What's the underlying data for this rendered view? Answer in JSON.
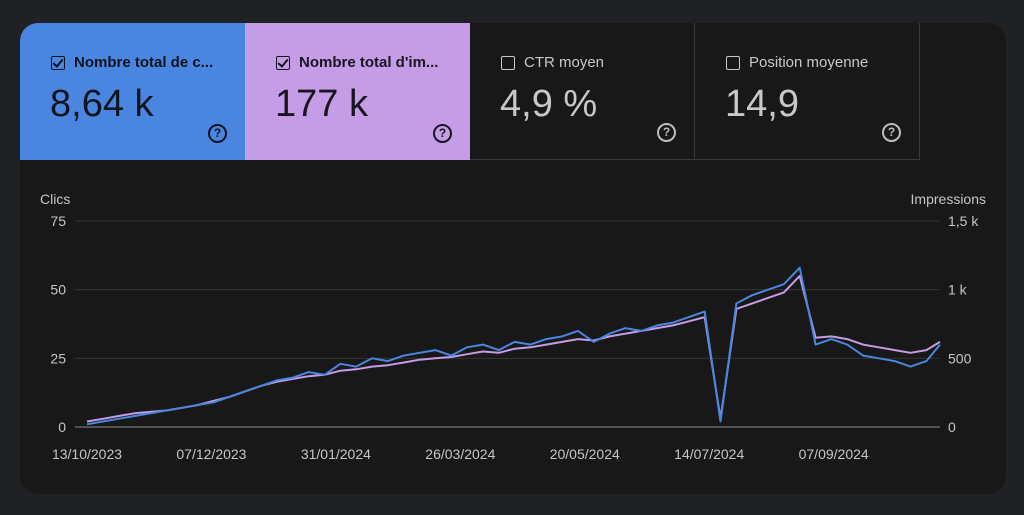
{
  "metrics": [
    {
      "label": "Nombre total de c...",
      "value": "8,64 k",
      "checked": true
    },
    {
      "label": "Nombre total d'im...",
      "value": "177 k",
      "checked": true
    },
    {
      "label": "CTR moyen",
      "value": "4,9 %",
      "checked": false
    },
    {
      "label": "Position moyenne",
      "value": "14,9",
      "checked": false
    }
  ],
  "help_glyph": "?",
  "colors": {
    "clicks": "#4a86e0",
    "impressions": "#c59ce6",
    "background": "#181818"
  },
  "chart_data": {
    "type": "line",
    "y_left": {
      "label": "Clics",
      "range": [
        0,
        75
      ],
      "ticks": [
        "0",
        "25",
        "50",
        "75"
      ]
    },
    "y_right": {
      "label": "Impressions",
      "range": [
        0,
        1500
      ],
      "ticks": [
        "0",
        "500",
        "1 k",
        "1,5 k"
      ]
    },
    "x_range": [
      "2023-10-13",
      "2024-10-24"
    ],
    "x_ticks": [
      "13/10/2023",
      "07/12/2023",
      "31/01/2024",
      "26/03/2024",
      "20/05/2024",
      "14/07/2024",
      "07/09/2024"
    ],
    "grid": true,
    "series": [
      {
        "name": "Clics",
        "axis": "left",
        "color": "#4a86e0",
        "values": [
          [
            "2023-10-13",
            1
          ],
          [
            "2023-10-20",
            2
          ],
          [
            "2023-10-27",
            3
          ],
          [
            "2023-11-03",
            4
          ],
          [
            "2023-11-10",
            5
          ],
          [
            "2023-11-17",
            6
          ],
          [
            "2023-11-24",
            7
          ],
          [
            "2023-12-01",
            8
          ],
          [
            "2023-12-08",
            9
          ],
          [
            "2023-12-15",
            11
          ],
          [
            "2023-12-22",
            13
          ],
          [
            "2023-12-29",
            15
          ],
          [
            "2024-01-05",
            17
          ],
          [
            "2024-01-12",
            18
          ],
          [
            "2024-01-19",
            20
          ],
          [
            "2024-01-26",
            19
          ],
          [
            "2024-02-02",
            23
          ],
          [
            "2024-02-09",
            22
          ],
          [
            "2024-02-16",
            25
          ],
          [
            "2024-02-23",
            24
          ],
          [
            "2024-03-01",
            26
          ],
          [
            "2024-03-08",
            27
          ],
          [
            "2024-03-15",
            28
          ],
          [
            "2024-03-22",
            26
          ],
          [
            "2024-03-29",
            29
          ],
          [
            "2024-04-05",
            30
          ],
          [
            "2024-04-12",
            28
          ],
          [
            "2024-04-19",
            31
          ],
          [
            "2024-04-26",
            30
          ],
          [
            "2024-05-03",
            32
          ],
          [
            "2024-05-10",
            33
          ],
          [
            "2024-05-17",
            35
          ],
          [
            "2024-05-24",
            31
          ],
          [
            "2024-05-31",
            34
          ],
          [
            "2024-06-07",
            36
          ],
          [
            "2024-06-14",
            35
          ],
          [
            "2024-06-21",
            37
          ],
          [
            "2024-06-28",
            38
          ],
          [
            "2024-07-05",
            40
          ],
          [
            "2024-07-12",
            42
          ],
          [
            "2024-07-19",
            2
          ],
          [
            "2024-07-26",
            45
          ],
          [
            "2024-08-02",
            48
          ],
          [
            "2024-08-09",
            50
          ],
          [
            "2024-08-16",
            52
          ],
          [
            "2024-08-23",
            58
          ],
          [
            "2024-08-30",
            30
          ],
          [
            "2024-09-06",
            32
          ],
          [
            "2024-09-13",
            30
          ],
          [
            "2024-09-20",
            26
          ],
          [
            "2024-09-27",
            25
          ],
          [
            "2024-10-04",
            24
          ],
          [
            "2024-10-11",
            22
          ],
          [
            "2024-10-18",
            24
          ],
          [
            "2024-10-24",
            30
          ]
        ]
      },
      {
        "name": "Impressions",
        "axis": "right",
        "color": "#c59ce6",
        "values": [
          [
            "2023-10-13",
            40
          ],
          [
            "2023-10-20",
            60
          ],
          [
            "2023-10-27",
            80
          ],
          [
            "2023-11-03",
            100
          ],
          [
            "2023-11-10",
            110
          ],
          [
            "2023-11-17",
            120
          ],
          [
            "2023-11-24",
            140
          ],
          [
            "2023-12-01",
            160
          ],
          [
            "2023-12-08",
            190
          ],
          [
            "2023-12-15",
            220
          ],
          [
            "2023-12-22",
            260
          ],
          [
            "2023-12-29",
            300
          ],
          [
            "2024-01-05",
            330
          ],
          [
            "2024-01-12",
            350
          ],
          [
            "2024-01-19",
            370
          ],
          [
            "2024-01-26",
            380
          ],
          [
            "2024-02-02",
            410
          ],
          [
            "2024-02-09",
            420
          ],
          [
            "2024-02-16",
            440
          ],
          [
            "2024-02-23",
            450
          ],
          [
            "2024-03-01",
            470
          ],
          [
            "2024-03-08",
            490
          ],
          [
            "2024-03-15",
            500
          ],
          [
            "2024-03-22",
            510
          ],
          [
            "2024-03-29",
            530
          ],
          [
            "2024-04-05",
            550
          ],
          [
            "2024-04-12",
            540
          ],
          [
            "2024-04-19",
            570
          ],
          [
            "2024-04-26",
            580
          ],
          [
            "2024-05-03",
            600
          ],
          [
            "2024-05-10",
            620
          ],
          [
            "2024-05-17",
            640
          ],
          [
            "2024-05-24",
            630
          ],
          [
            "2024-05-31",
            660
          ],
          [
            "2024-06-07",
            680
          ],
          [
            "2024-06-14",
            700
          ],
          [
            "2024-06-21",
            720
          ],
          [
            "2024-06-28",
            740
          ],
          [
            "2024-07-05",
            770
          ],
          [
            "2024-07-12",
            800
          ],
          [
            "2024-07-19",
            60
          ],
          [
            "2024-07-26",
            860
          ],
          [
            "2024-08-02",
            900
          ],
          [
            "2024-08-09",
            940
          ],
          [
            "2024-08-16",
            980
          ],
          [
            "2024-08-23",
            1100
          ],
          [
            "2024-08-30",
            650
          ],
          [
            "2024-09-06",
            660
          ],
          [
            "2024-09-13",
            640
          ],
          [
            "2024-09-20",
            600
          ],
          [
            "2024-09-27",
            580
          ],
          [
            "2024-10-04",
            560
          ],
          [
            "2024-10-11",
            540
          ],
          [
            "2024-10-18",
            560
          ],
          [
            "2024-10-24",
            620
          ]
        ]
      }
    ]
  }
}
